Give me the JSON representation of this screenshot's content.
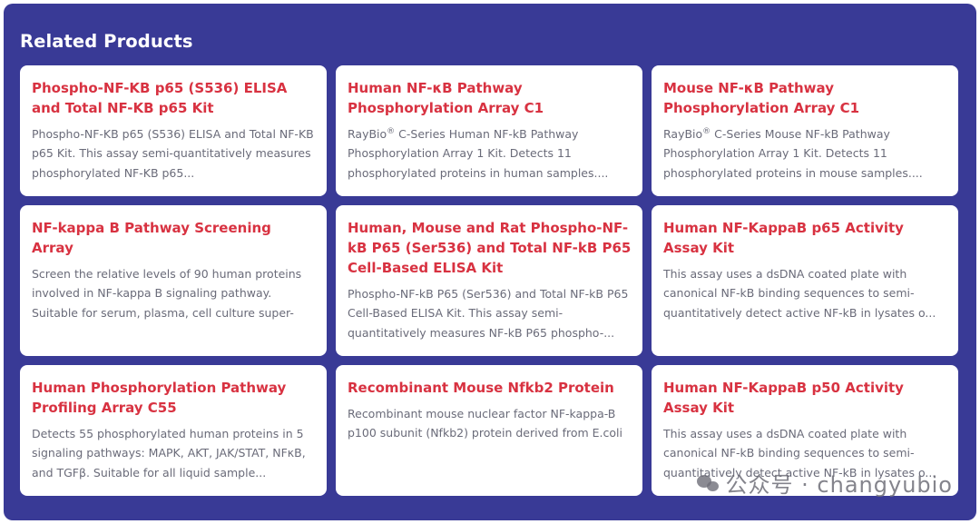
{
  "section": {
    "title": "Related Products"
  },
  "products": [
    {
      "title": "Phospho-NF-KB p65 (S536) ELISA and Total NF-KB p65 Kit",
      "desc": "Phospho-NF-KB p65 (S536) ELISA and Total NF-KB p65 Kit. This assay semi-quantitatively measures phosphorylated NF-KB p65..."
    },
    {
      "title": "Human NF-κB Pathway Phosphorylation Array C1",
      "desc_prefix": "RayBio",
      "desc_sup": "®",
      "desc": " C-Series Human NF-kB Pathway Phosphorylation Array 1 Kit. Detects 11 phosphorylated proteins in human samples...."
    },
    {
      "title": "Mouse NF-κB Pathway Phosphorylation Array C1",
      "desc_prefix": "RayBio",
      "desc_sup": "®",
      "desc": " C-Series Mouse NF-kB Pathway Phosphorylation Array 1 Kit. Detects 11 phosphorylated proteins in mouse samples...."
    },
    {
      "title": "NF-kappa B Pathway Screening Array",
      "desc": "Screen the relative levels of 90 human proteins involved in NF-kappa B signaling pathway. Suitable for serum, plasma, cell culture super-"
    },
    {
      "title": "Human, Mouse and Rat Phospho-NF-kB P65 (Ser536) and Total NF-kB P65 Cell-Based ELISA Kit",
      "desc": "Phospho-NF-kB P65 (Ser536) and Total NF-kB P65 Cell-Based ELISA Kit. This assay semi-quantitatively measures NF-kB P65 phospho-..."
    },
    {
      "title": "Human NF-KappaB p65 Activity Assay Kit",
      "desc": "This assay uses a dsDNA coated plate with canonical NF-kB binding sequences to semi-quantitatively detect active NF-kB in lysates o..."
    },
    {
      "title": "Human Phosphorylation Pathway Profiling Array C55",
      "desc": "Detects 55 phosphorylated human proteins in 5 signaling pathways: MAPK, AKT, JAK/STAT, NFκB, and TGFβ. Suitable for all liquid sample..."
    },
    {
      "title": "Recombinant Mouse Nfkb2 Protein",
      "desc": "Recombinant mouse nuclear factor NF-kappa-B p100 subunit (Nfkb2) protein derived from E.coli"
    },
    {
      "title": "Human NF-KappaB p50 Activity Assay Kit",
      "desc": "This assay uses a dsDNA coated plate with canonical NF-kB binding sequences to semi-quantitatively detect active NF-kB in lysates o..."
    }
  ],
  "watermark": {
    "text": "公众号 · changyubio"
  }
}
